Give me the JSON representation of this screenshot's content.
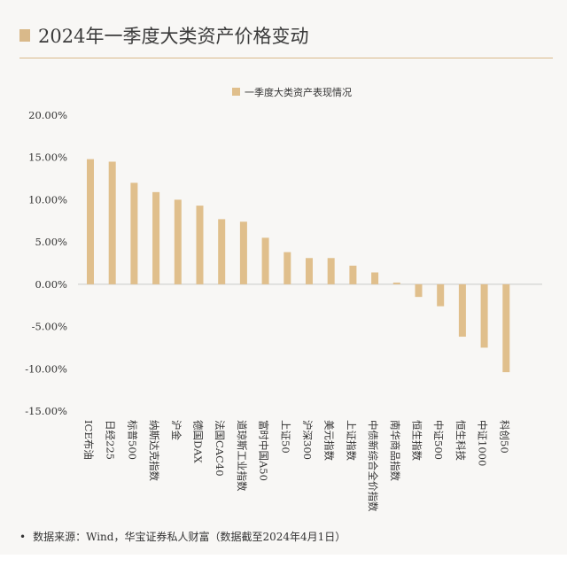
{
  "header": {
    "title": "2024年一季度大类资产价格变动"
  },
  "footer": {
    "bullet": "•",
    "source": "数据来源：Wind，华宝证券私人财富（数据截至2024年4月1日）"
  },
  "colors": {
    "bar": "#e0bf8c",
    "accent": "#d9b98a",
    "axis": "#c8c8c8",
    "text": "#333333"
  },
  "chart_data": {
    "type": "bar",
    "title": "",
    "legend": {
      "label": "一季度大类资产表现情况",
      "position": "top-center"
    },
    "categories": [
      "ICE布油",
      "日经225",
      "标普500",
      "纳斯达克指数",
      "沪金",
      "德国DAX",
      "法国CAC40",
      "道琼斯工业指数",
      "富时中国A50",
      "上证50",
      "沪深300",
      "美元指数",
      "上证指数",
      "中债新综合全价指数",
      "南华商品指数",
      "恒生指数",
      "中证500",
      "恒生科技",
      "中证1000",
      "科创50"
    ],
    "values": [
      14.8,
      14.5,
      12.0,
      10.9,
      10.0,
      9.3,
      7.7,
      7.4,
      5.5,
      3.8,
      3.1,
      3.1,
      2.2,
      1.4,
      0.2,
      -1.5,
      -2.6,
      -6.2,
      -7.5,
      -10.4
    ],
    "yticks": [
      "20.00%",
      "15.00%",
      "10.00%",
      "5.00%",
      "0.00%",
      "-5.00%",
      "-10.00%",
      "-15.00%"
    ],
    "ylim": [
      -15,
      20
    ],
    "xlabel": "",
    "ylabel": "",
    "grid": false
  }
}
